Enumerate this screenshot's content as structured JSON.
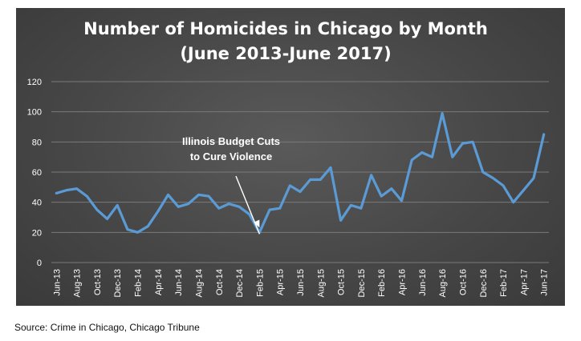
{
  "source": "Source: Crime in Chicago, Chicago Tribune",
  "colors": {
    "line": "#5b9bd5",
    "grid": "#7a7a7a",
    "text": "#ffffff",
    "background": "#474747"
  },
  "chart_data": {
    "type": "line",
    "title": "Number of Homicides in Chicago by Month",
    "subtitle": "(June 2013-June 2017)",
    "xlabel": "",
    "ylabel": "",
    "ylim": [
      0,
      120
    ],
    "yticks": [
      0,
      20,
      40,
      60,
      80,
      100,
      120
    ],
    "grid": true,
    "legend": "none",
    "x_tick_labels": [
      "Jun-13",
      "Aug-13",
      "Oct-13",
      "Dec-13",
      "Feb-14",
      "Apr-14",
      "Jun-14",
      "Aug-14",
      "Oct-14",
      "Dec-14",
      "Feb-15",
      "Apr-15",
      "Jun-15",
      "Aug-15",
      "Oct-15",
      "Dec-15",
      "Feb-16",
      "Apr-16",
      "Jun-16",
      "Aug-16",
      "Oct-16",
      "Dec-16",
      "Feb-17",
      "Apr-17",
      "Jun-17"
    ],
    "x": [
      "Jun-13",
      "Jul-13",
      "Aug-13",
      "Sep-13",
      "Oct-13",
      "Nov-13",
      "Dec-13",
      "Jan-14",
      "Feb-14",
      "Mar-14",
      "Apr-14",
      "May-14",
      "Jun-14",
      "Jul-14",
      "Aug-14",
      "Sep-14",
      "Oct-14",
      "Nov-14",
      "Dec-14",
      "Jan-15",
      "Feb-15",
      "Mar-15",
      "Apr-15",
      "May-15",
      "Jun-15",
      "Jul-15",
      "Aug-15",
      "Sep-15",
      "Oct-15",
      "Nov-15",
      "Dec-15",
      "Jan-16",
      "Feb-16",
      "Mar-16",
      "Apr-16",
      "May-16",
      "Jun-16",
      "Jul-16",
      "Aug-16",
      "Sep-16",
      "Oct-16",
      "Nov-16",
      "Dec-16",
      "Jan-17",
      "Feb-17",
      "Mar-17",
      "Apr-17",
      "May-17",
      "Jun-17"
    ],
    "series": [
      {
        "values": [
          46,
          48,
          49,
          44,
          35,
          29,
          38,
          22,
          20,
          24,
          34,
          45,
          37,
          39,
          45,
          44,
          36,
          39,
          37,
          32,
          20,
          35,
          36,
          51,
          47,
          55,
          55,
          63,
          28,
          38,
          36,
          58,
          44,
          49,
          41,
          68,
          73,
          70,
          99,
          70,
          79,
          80,
          60,
          56,
          51,
          40,
          48,
          56,
          85
        ]
      }
    ],
    "annotations": [
      {
        "lines": [
          "Illinois Budget Cuts",
          "to Cure Violence"
        ],
        "x": "Feb-15",
        "y": 20
      }
    ]
  }
}
